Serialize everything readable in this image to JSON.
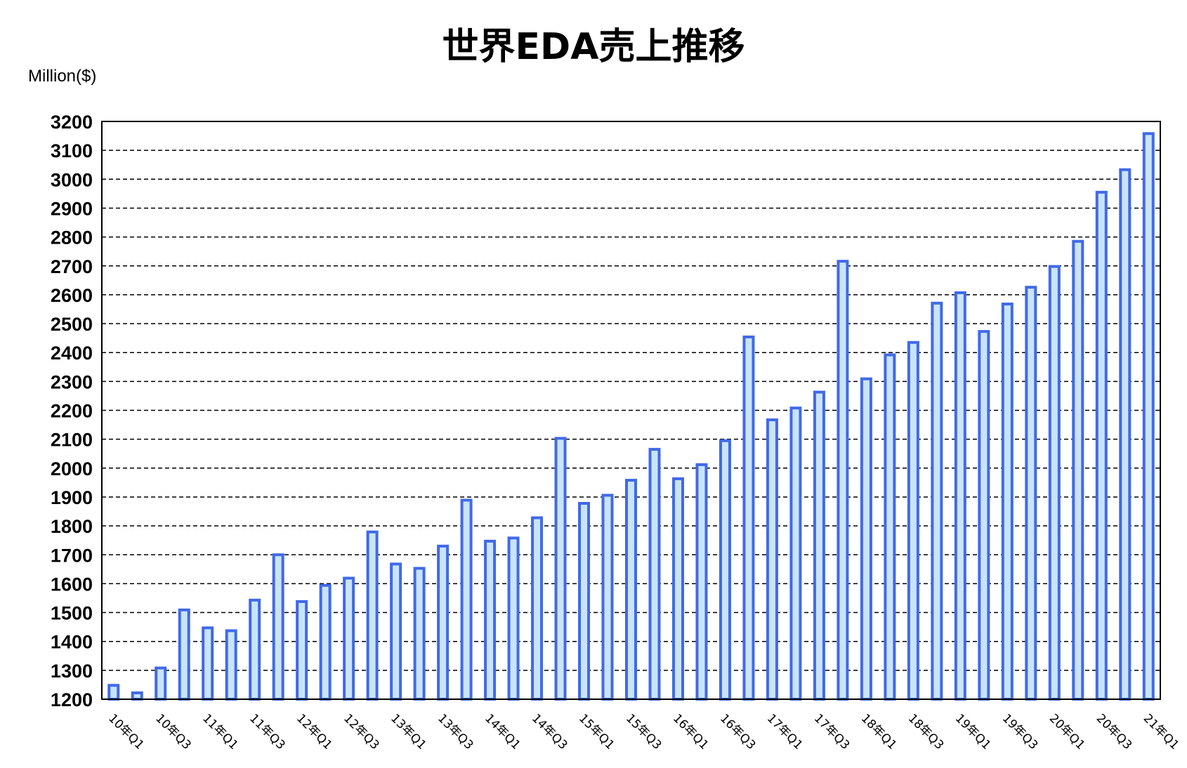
{
  "chart_data": {
    "type": "bar",
    "title": "世界EDA売上推移",
    "unit_label": "Million($)",
    "xlabel": "",
    "ylabel": "",
    "ylim": [
      1200,
      3200
    ],
    "y_ticks": [
      1200,
      1300,
      1400,
      1500,
      1600,
      1700,
      1800,
      1900,
      2000,
      2100,
      2200,
      2300,
      2400,
      2500,
      2600,
      2700,
      2800,
      2900,
      3000,
      3100,
      3200
    ],
    "grid": true,
    "legend": "none",
    "colors": {
      "bar_fill": "#c9e4f8",
      "bar_stroke": "#4169e8"
    },
    "categories": [
      "10年Q1",
      "10年Q2",
      "10年Q3",
      "10年Q4",
      "11年Q1",
      "11年Q2",
      "11年Q3",
      "11年Q4",
      "12年Q1",
      "12年Q2",
      "12年Q3",
      "12年Q4",
      "13年Q1",
      "13年Q2",
      "13年Q3",
      "13年Q4",
      "14年Q1",
      "14年Q2",
      "14年Q3",
      "14年Q4",
      "15年Q1",
      "15年Q2",
      "15年Q3",
      "15年Q4",
      "16年Q1",
      "16年Q2",
      "16年Q3",
      "16年Q4",
      "17年Q1",
      "17年Q2",
      "17年Q3",
      "17年Q4",
      "18年Q1",
      "18年Q2",
      "18年Q3",
      "18年Q4",
      "19年Q1",
      "19年Q2",
      "19年Q3",
      "19年Q4",
      "20年Q1",
      "20年Q2",
      "20年Q3",
      "20年Q4",
      "21年Q1"
    ],
    "visible_tick_labels": [
      "10年Q1",
      "10年Q3",
      "11年Q1",
      "11年Q3",
      "12年Q1",
      "12年Q3",
      "13年Q1",
      "13年Q3",
      "14年Q1",
      "14年Q3",
      "15年Q1",
      "15年Q3",
      "16年Q1",
      "16年Q3",
      "17年Q1",
      "17年Q3",
      "18年Q1",
      "18年Q3",
      "19年Q1",
      "19年Q3",
      "20年Q1",
      "20年Q3",
      "21年Q1"
    ],
    "values": [
      1248,
      1222,
      1308,
      1509,
      1447,
      1437,
      1543,
      1700,
      1538,
      1594,
      1619,
      1779,
      1668,
      1653,
      1730,
      1889,
      1747,
      1758,
      1828,
      2103,
      1878,
      1906,
      1958,
      2065,
      1963,
      2012,
      2095,
      2454,
      2167,
      2208,
      2263,
      2716,
      2309,
      2392,
      2435,
      2571,
      2607,
      2473,
      2568,
      2626,
      2698,
      2785,
      2955,
      3033,
      3158
    ]
  }
}
